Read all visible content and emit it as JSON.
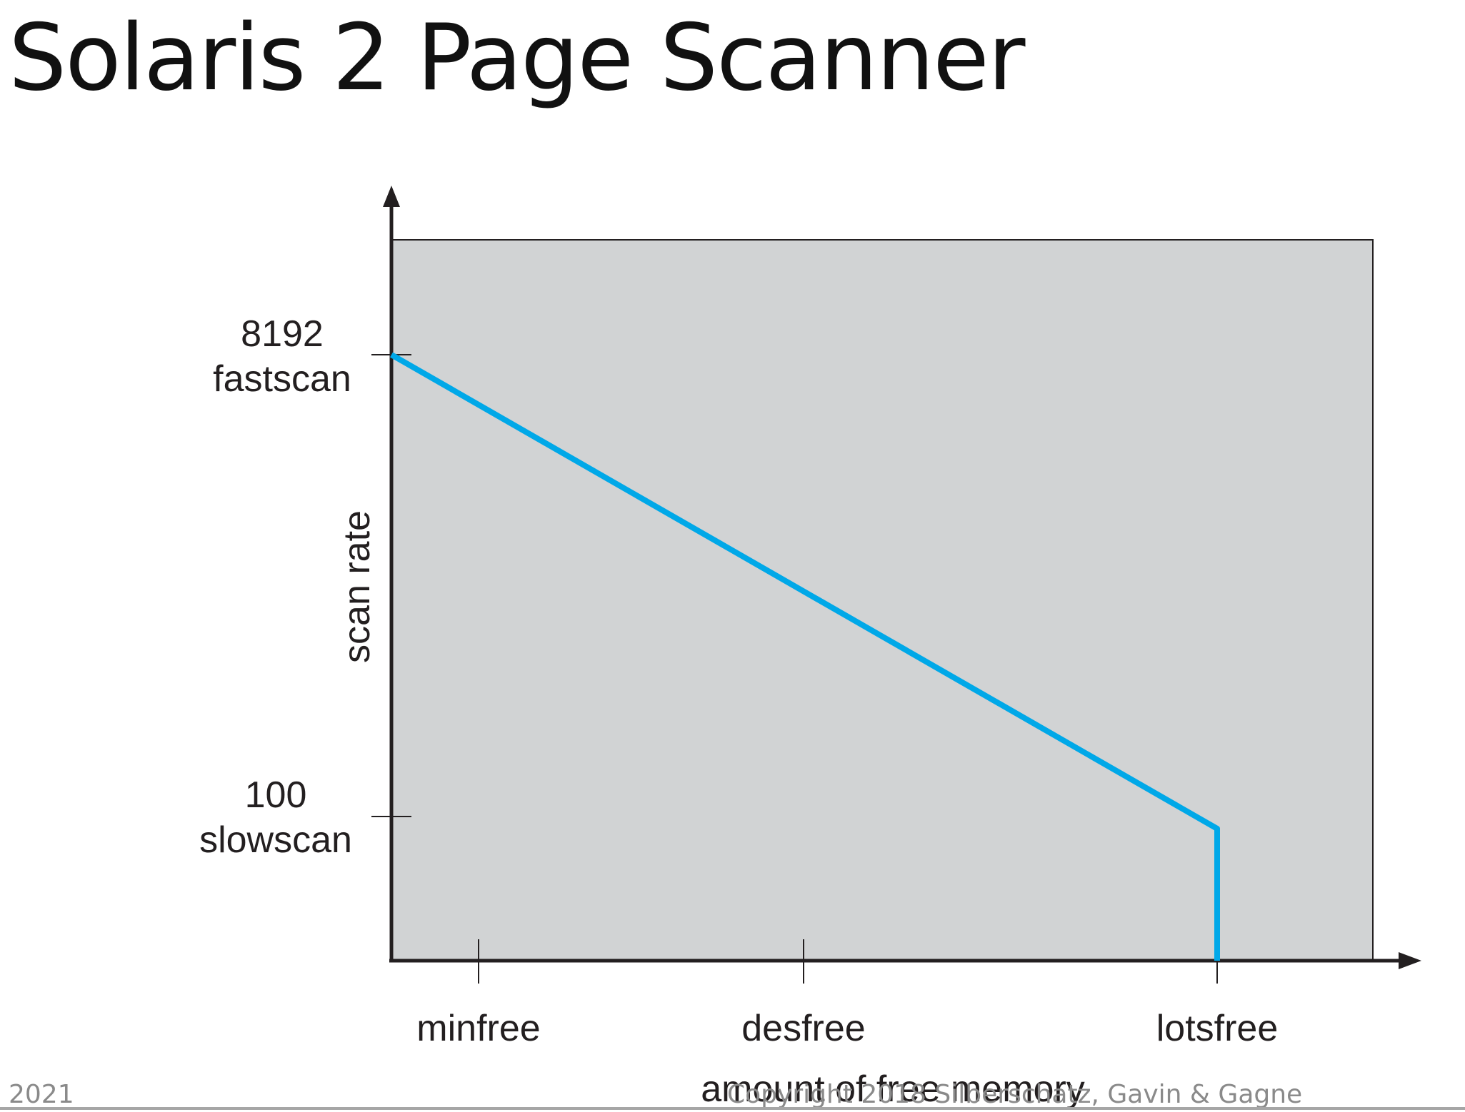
{
  "slide": {
    "title": "Solaris 2 Page Scanner",
    "footer_year": "2021",
    "footer_copyright": "Copyright 2018 Silberschatz, Gavin & Gagne"
  },
  "chart_data": {
    "type": "line",
    "title": "",
    "xlabel": "amount of free memory",
    "ylabel": "scan rate",
    "x_ticks": [
      "minfree",
      "desfree",
      "lotsfree"
    ],
    "y_ticks": [
      {
        "value": "8192",
        "name": "fastscan"
      },
      {
        "value": "100",
        "name": "slowscan"
      }
    ],
    "series": [
      {
        "points": [
          {
            "x": "0",
            "y": 8192
          },
          {
            "x": "lotsfree",
            "y": 100
          },
          {
            "x": "lotsfree",
            "y": 0
          }
        ]
      }
    ],
    "colors": {
      "line": "#00a8e8",
      "plot_bg": "#d1d3d4",
      "axis": "#231f20"
    },
    "grid": false,
    "legend": "none"
  }
}
